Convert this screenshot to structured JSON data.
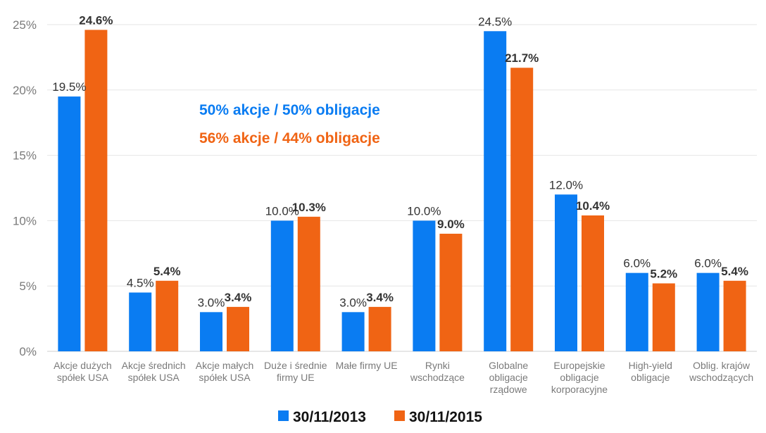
{
  "chart_data": {
    "type": "bar",
    "title": "",
    "xlabel": "",
    "ylabel": "",
    "ylim": [
      0,
      25
    ],
    "yticks": [
      "0%",
      "5%",
      "10%",
      "15%",
      "20%",
      "25%"
    ],
    "grid": true,
    "categories": [
      [
        "Akcje dużych",
        "spółek USA"
      ],
      [
        "Akcje średnich",
        "spółek USA"
      ],
      [
        "Akcje małych",
        "spółek USA"
      ],
      [
        "Duże i średnie",
        "firmy UE"
      ],
      [
        "Małe firmy UE"
      ],
      [
        "Rynki",
        "wschodzące"
      ],
      [
        "Globalne",
        "obligacje",
        "rządowe"
      ],
      [
        "Europejskie",
        "obligacje",
        "korporacyjne"
      ],
      [
        "High-yield",
        "obligacje"
      ],
      [
        "Oblig. krajów",
        "wschodzących"
      ]
    ],
    "series": [
      {
        "name": "30/11/2013",
        "color": "#0a7cf2",
        "values": [
          19.5,
          4.5,
          3.0,
          10.0,
          3.0,
          10.0,
          24.5,
          12.0,
          6.0,
          6.0
        ],
        "labels": [
          "19.5%",
          "4.5%",
          "3.0%",
          "10.0%",
          "3.0%",
          "10.0%",
          "24.5%",
          "12.0%",
          "6.0%",
          "6.0%"
        ]
      },
      {
        "name": "30/11/2015",
        "color": "#f06414",
        "values": [
          24.6,
          5.4,
          3.4,
          10.3,
          3.4,
          9.0,
          21.7,
          10.4,
          5.2,
          5.4
        ],
        "labels": [
          "24.6%",
          "5.4%",
          "3.4%",
          "10.3%",
          "3.4%",
          "9.0%",
          "21.7%",
          "10.4%",
          "5.2%",
          "5.4%"
        ]
      }
    ],
    "annotations": [
      {
        "text": "50% akcje / 50% obligacje",
        "color": "#0a7cf2"
      },
      {
        "text": "56% akcje / 44% obligacje",
        "color": "#f06414"
      }
    ],
    "legend_position": "bottom"
  }
}
